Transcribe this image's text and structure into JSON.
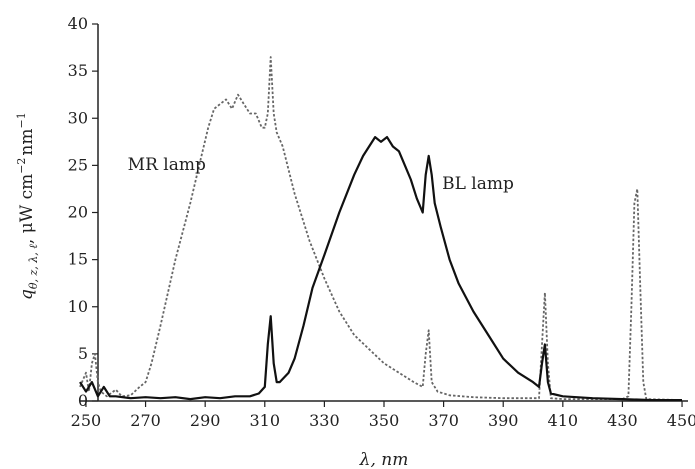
{
  "chart_data": {
    "type": "line",
    "xlabel": "λ, nm",
    "ylabel": "q",
    "ylabel_sub": "θ, z, λ, ℓ",
    "ylabel_unit": ", μW cm",
    "ylabel_exp1": "−2",
    "ylabel_unit2": "nm",
    "ylabel_exp2": "−1",
    "xlim": [
      248,
      452
    ],
    "ylim": [
      0,
      40
    ],
    "xticks": [
      250,
      270,
      290,
      310,
      330,
      350,
      370,
      390,
      410,
      430,
      450
    ],
    "yticks": [
      0,
      5,
      10,
      15,
      20,
      25,
      30,
      35,
      40
    ],
    "grid": false,
    "annotations": [
      {
        "text": "MR lamp",
        "x": 264,
        "y": 24.5
      },
      {
        "text": "BL lamp",
        "x": 369.5,
        "y": 22.5
      }
    ],
    "series": [
      {
        "name": "MR lamp",
        "style": "dotted",
        "color": "#666666",
        "points": [
          [
            248,
            1.5
          ],
          [
            250,
            3.0
          ],
          [
            251,
            1.0
          ],
          [
            252,
            4.0
          ],
          [
            253,
            5.0
          ],
          [
            254,
            2.0
          ],
          [
            255,
            1.0
          ],
          [
            257,
            0.5
          ],
          [
            260,
            1.2
          ],
          [
            262,
            0.5
          ],
          [
            265,
            0.6
          ],
          [
            268,
            1.5
          ],
          [
            270,
            2.0
          ],
          [
            272,
            4.0
          ],
          [
            275,
            8.0
          ],
          [
            280,
            15.0
          ],
          [
            285,
            21.0
          ],
          [
            288,
            25.0
          ],
          [
            291,
            29.0
          ],
          [
            293,
            31.0
          ],
          [
            295,
            31.5
          ],
          [
            297,
            32.0
          ],
          [
            299,
            31.0
          ],
          [
            301,
            32.5
          ],
          [
            303,
            31.5
          ],
          [
            305,
            30.5
          ],
          [
            307,
            30.5
          ],
          [
            309,
            29.0
          ],
          [
            310,
            29.0
          ],
          [
            311,
            30.5
          ],
          [
            312,
            36.5
          ],
          [
            313,
            30.5
          ],
          [
            314,
            28.5
          ],
          [
            316,
            27.0
          ],
          [
            320,
            22.0
          ],
          [
            325,
            17.0
          ],
          [
            330,
            13.0
          ],
          [
            335,
            9.5
          ],
          [
            340,
            7.0
          ],
          [
            345,
            5.5
          ],
          [
            350,
            4.0
          ],
          [
            355,
            3.0
          ],
          [
            360,
            2.0
          ],
          [
            363,
            1.5
          ],
          [
            364,
            5.0
          ],
          [
            365,
            7.5
          ],
          [
            366,
            2.0
          ],
          [
            368,
            1.0
          ],
          [
            372,
            0.6
          ],
          [
            380,
            0.4
          ],
          [
            390,
            0.3
          ],
          [
            400,
            0.3
          ],
          [
            402,
            0.3
          ],
          [
            403,
            6.0
          ],
          [
            404,
            11.5
          ],
          [
            405,
            4.0
          ],
          [
            406,
            0.3
          ],
          [
            410,
            0.2
          ],
          [
            420,
            0.2
          ],
          [
            430,
            0.2
          ],
          [
            432,
            0.5
          ],
          [
            433,
            10.0
          ],
          [
            434,
            21.0
          ],
          [
            435,
            22.5
          ],
          [
            436,
            12.0
          ],
          [
            437,
            2.0
          ],
          [
            438,
            0.2
          ],
          [
            450,
            0.1
          ]
        ]
      },
      {
        "name": "BL lamp",
        "style": "solid",
        "color": "#111111",
        "points": [
          [
            248,
            2.0
          ],
          [
            250,
            1.0
          ],
          [
            252,
            2.0
          ],
          [
            254,
            0.5
          ],
          [
            256,
            1.5
          ],
          [
            258,
            0.5
          ],
          [
            260,
            0.5
          ],
          [
            265,
            0.3
          ],
          [
            270,
            0.4
          ],
          [
            275,
            0.3
          ],
          [
            280,
            0.4
          ],
          [
            285,
            0.2
          ],
          [
            290,
            0.4
          ],
          [
            295,
            0.3
          ],
          [
            300,
            0.5
          ],
          [
            305,
            0.5
          ],
          [
            308,
            0.8
          ],
          [
            310,
            1.5
          ],
          [
            311,
            6.0
          ],
          [
            312,
            9.0
          ],
          [
            313,
            4.0
          ],
          [
            314,
            2.0
          ],
          [
            315,
            2.0
          ],
          [
            318,
            3.0
          ],
          [
            320,
            4.5
          ],
          [
            323,
            8.0
          ],
          [
            326,
            12.0
          ],
          [
            330,
            15.5
          ],
          [
            335,
            20.0
          ],
          [
            340,
            24.0
          ],
          [
            343,
            26.0
          ],
          [
            345,
            27.0
          ],
          [
            347,
            28.0
          ],
          [
            349,
            27.5
          ],
          [
            351,
            28.0
          ],
          [
            353,
            27.0
          ],
          [
            355,
            26.5
          ],
          [
            357,
            25.0
          ],
          [
            359,
            23.5
          ],
          [
            361,
            21.5
          ],
          [
            363,
            20.0
          ],
          [
            364,
            24.0
          ],
          [
            365,
            26.0
          ],
          [
            366,
            24.0
          ],
          [
            367,
            21.0
          ],
          [
            369,
            18.5
          ],
          [
            372,
            15.0
          ],
          [
            375,
            12.5
          ],
          [
            380,
            9.5
          ],
          [
            385,
            7.0
          ],
          [
            390,
            4.5
          ],
          [
            395,
            3.0
          ],
          [
            400,
            2.0
          ],
          [
            402,
            1.5
          ],
          [
            403,
            4.0
          ],
          [
            404,
            6.0
          ],
          [
            405,
            2.0
          ],
          [
            406,
            0.8
          ],
          [
            410,
            0.5
          ],
          [
            420,
            0.3
          ],
          [
            430,
            0.2
          ],
          [
            440,
            0.1
          ],
          [
            450,
            0.1
          ]
        ]
      }
    ]
  }
}
